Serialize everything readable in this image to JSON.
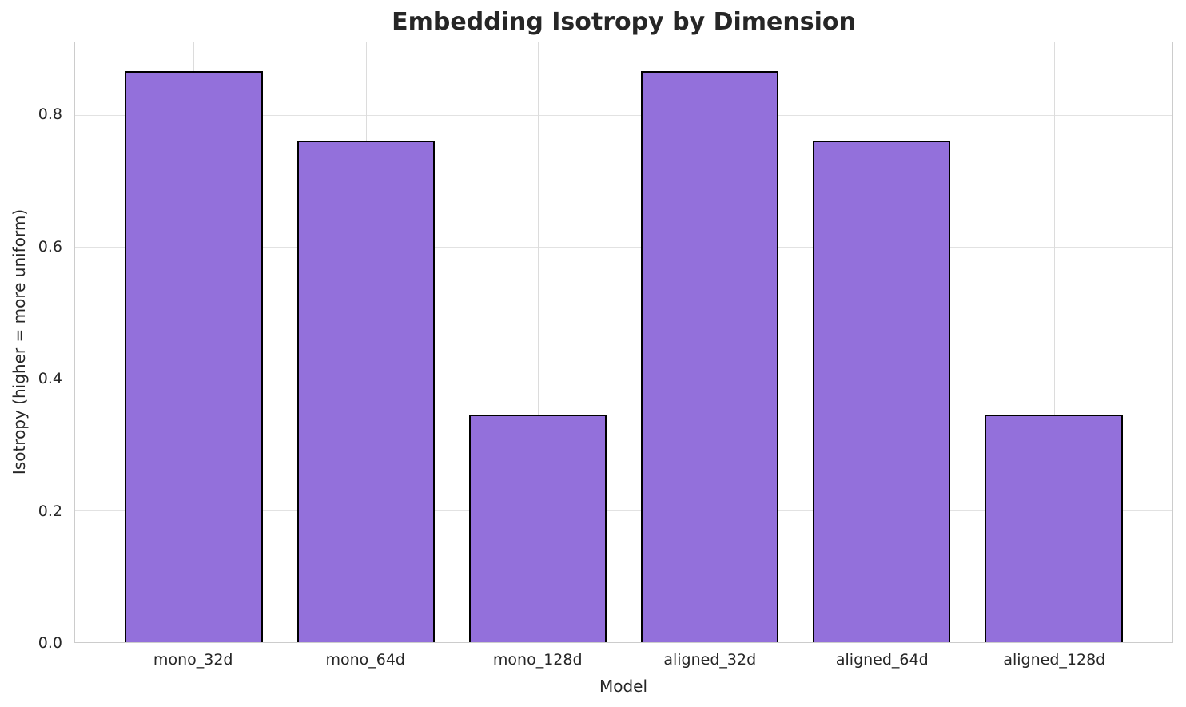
{
  "chart_data": {
    "type": "bar",
    "title": "Embedding Isotropy by Dimension",
    "xlabel": "Model",
    "ylabel": "Isotropy (higher = more uniform)",
    "categories": [
      "mono_32d",
      "mono_64d",
      "mono_128d",
      "aligned_32d",
      "aligned_64d",
      "aligned_128d"
    ],
    "values": [
      0.866,
      0.761,
      0.345,
      0.866,
      0.761,
      0.345
    ],
    "ylim": [
      0,
      0.91
    ],
    "yticks": [
      0.0,
      0.2,
      0.4,
      0.6,
      0.8
    ],
    "ytick_labels": [
      "0.0",
      "0.2",
      "0.4",
      "0.6",
      "0.8"
    ],
    "grid": "both",
    "legend": "none",
    "bar_color": "#9370DB",
    "bar_edge_color": "#000000",
    "grid_color": "#e2e2e2",
    "spine_color": "#cccccc",
    "text_color": "#262626"
  }
}
